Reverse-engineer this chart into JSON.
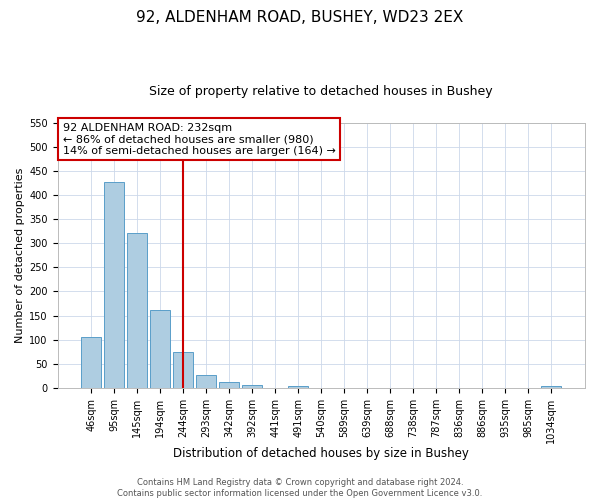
{
  "title": "92, ALDENHAM ROAD, BUSHEY, WD23 2EX",
  "subtitle": "Size of property relative to detached houses in Bushey",
  "xlabel": "Distribution of detached houses by size in Bushey",
  "ylabel": "Number of detached properties",
  "bar_labels": [
    "46sqm",
    "95sqm",
    "145sqm",
    "194sqm",
    "244sqm",
    "293sqm",
    "342sqm",
    "392sqm",
    "441sqm",
    "491sqm",
    "540sqm",
    "589sqm",
    "639sqm",
    "688sqm",
    "738sqm",
    "787sqm",
    "836sqm",
    "886sqm",
    "935sqm",
    "985sqm",
    "1034sqm"
  ],
  "bar_values": [
    105,
    428,
    321,
    162,
    75,
    27,
    13,
    5,
    0,
    3,
    0,
    0,
    0,
    0,
    0,
    0,
    0,
    0,
    0,
    0,
    4
  ],
  "bar_color": "#aecde1",
  "bar_edge_color": "#5a9ec9",
  "vline_x": 4,
  "vline_color": "#cc0000",
  "ylim": [
    0,
    550
  ],
  "yticks": [
    0,
    50,
    100,
    150,
    200,
    250,
    300,
    350,
    400,
    450,
    500,
    550
  ],
  "annotation_title": "92 ALDENHAM ROAD: 232sqm",
  "annotation_line1": "← 86% of detached houses are smaller (980)",
  "annotation_line2": "14% of semi-detached houses are larger (164) →",
  "annotation_box_color": "#ffffff",
  "annotation_box_edge": "#cc0000",
  "footer_line1": "Contains HM Land Registry data © Crown copyright and database right 2024.",
  "footer_line2": "Contains public sector information licensed under the Open Government Licence v3.0.",
  "title_fontsize": 11,
  "subtitle_fontsize": 9,
  "xlabel_fontsize": 8.5,
  "ylabel_fontsize": 8,
  "tick_fontsize": 7,
  "footer_fontsize": 6,
  "annotation_fontsize": 8
}
